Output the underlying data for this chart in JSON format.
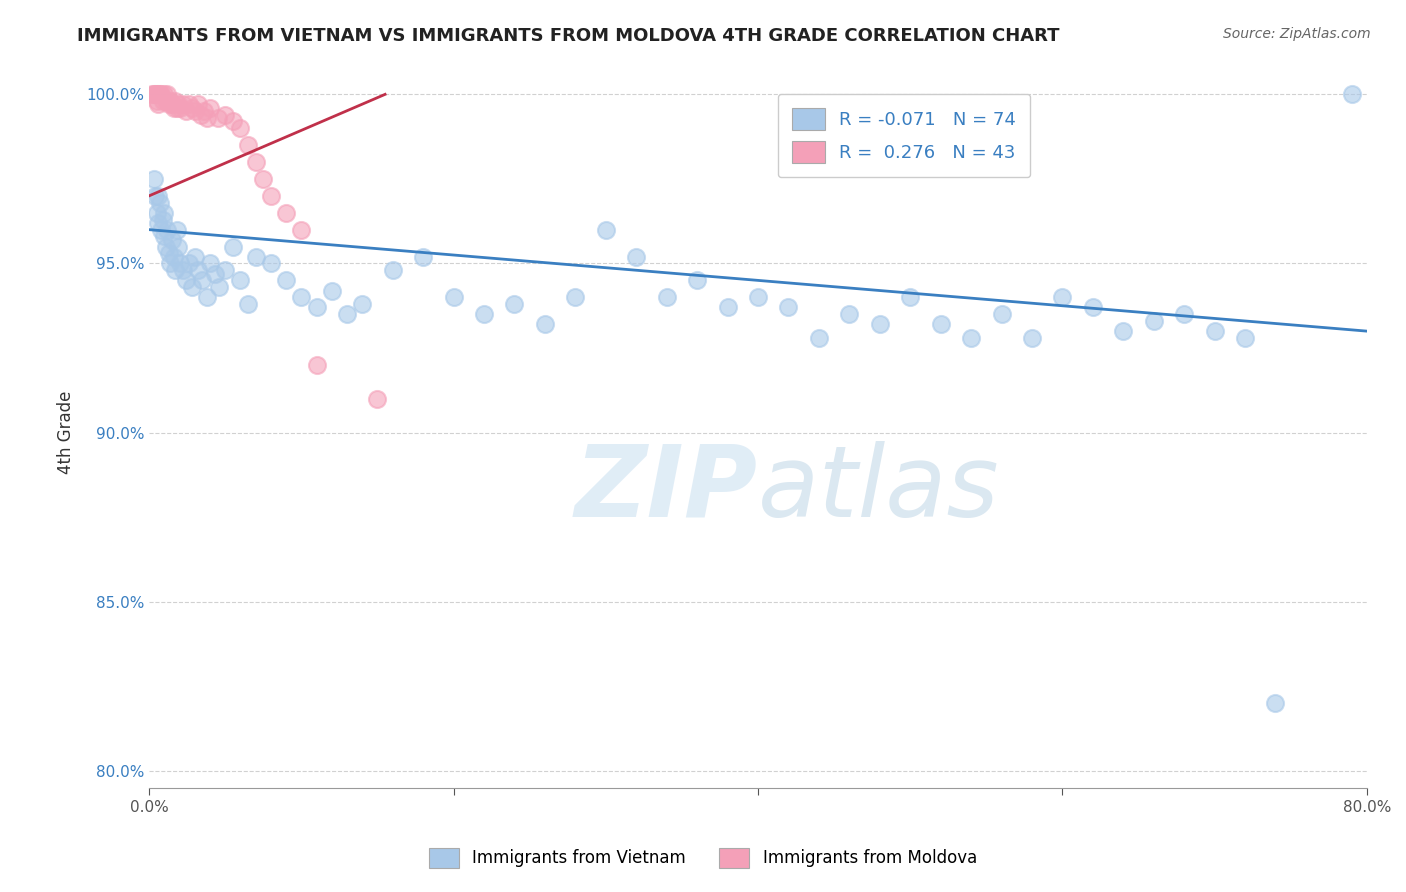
{
  "title": "IMMIGRANTS FROM VIETNAM VS IMMIGRANTS FROM MOLDOVA 4TH GRADE CORRELATION CHART",
  "source": "Source: ZipAtlas.com",
  "ylabel": "4th Grade",
  "xlim": [
    0.0,
    0.8
  ],
  "ylim": [
    0.795,
    1.005
  ],
  "xticks": [
    0.0,
    0.2,
    0.4,
    0.6,
    0.8
  ],
  "yticks": [
    0.8,
    0.85,
    0.9,
    0.95,
    1.0
  ],
  "r_vietnam": -0.071,
  "n_vietnam": 74,
  "r_moldova": 0.276,
  "n_moldova": 43,
  "color_vietnam": "#a8c8e8",
  "color_moldova": "#f4a0b8",
  "trendline_vietnam_color": "#3a7fc1",
  "trendline_moldova_color": "#c0304a",
  "background_color": "#ffffff",
  "grid_color": "#cccccc",
  "vietnam_x": [
    0.003,
    0.004,
    0.005,
    0.006,
    0.006,
    0.007,
    0.008,
    0.009,
    0.01,
    0.01,
    0.011,
    0.012,
    0.013,
    0.014,
    0.015,
    0.016,
    0.017,
    0.018,
    0.019,
    0.02,
    0.022,
    0.024,
    0.026,
    0.028,
    0.03,
    0.032,
    0.035,
    0.038,
    0.04,
    0.043,
    0.046,
    0.05,
    0.055,
    0.06,
    0.065,
    0.07,
    0.08,
    0.09,
    0.1,
    0.11,
    0.12,
    0.13,
    0.14,
    0.16,
    0.18,
    0.2,
    0.22,
    0.24,
    0.26,
    0.28,
    0.3,
    0.32,
    0.34,
    0.36,
    0.38,
    0.4,
    0.42,
    0.44,
    0.46,
    0.48,
    0.5,
    0.52,
    0.54,
    0.56,
    0.58,
    0.6,
    0.62,
    0.64,
    0.66,
    0.68,
    0.7,
    0.72,
    0.74,
    0.79
  ],
  "vietnam_y": [
    0.975,
    0.97,
    0.965,
    0.962,
    0.97,
    0.968,
    0.96,
    0.963,
    0.958,
    0.965,
    0.955,
    0.96,
    0.953,
    0.95,
    0.957,
    0.952,
    0.948,
    0.96,
    0.955,
    0.95,
    0.948,
    0.945,
    0.95,
    0.943,
    0.952,
    0.948,
    0.945,
    0.94,
    0.95,
    0.947,
    0.943,
    0.948,
    0.955,
    0.945,
    0.938,
    0.952,
    0.95,
    0.945,
    0.94,
    0.937,
    0.942,
    0.935,
    0.938,
    0.948,
    0.952,
    0.94,
    0.935,
    0.938,
    0.932,
    0.94,
    0.96,
    0.952,
    0.94,
    0.945,
    0.937,
    0.94,
    0.937,
    0.928,
    0.935,
    0.932,
    0.94,
    0.932,
    0.928,
    0.935,
    0.928,
    0.94,
    0.937,
    0.93,
    0.933,
    0.935,
    0.93,
    0.928,
    0.82,
    1.0
  ],
  "moldova_x": [
    0.002,
    0.003,
    0.004,
    0.005,
    0.005,
    0.006,
    0.006,
    0.007,
    0.008,
    0.009,
    0.01,
    0.011,
    0.012,
    0.013,
    0.014,
    0.015,
    0.016,
    0.017,
    0.018,
    0.019,
    0.02,
    0.022,
    0.024,
    0.026,
    0.028,
    0.03,
    0.032,
    0.034,
    0.036,
    0.038,
    0.04,
    0.045,
    0.05,
    0.055,
    0.06,
    0.065,
    0.07,
    0.075,
    0.08,
    0.09,
    0.1,
    0.11,
    0.15
  ],
  "moldova_y": [
    1.0,
    1.0,
    1.0,
    1.0,
    0.998,
    1.0,
    0.997,
    1.0,
    1.0,
    0.998,
    1.0,
    0.998,
    1.0,
    0.997,
    0.998,
    0.997,
    0.996,
    0.998,
    0.996,
    0.997,
    0.996,
    0.997,
    0.995,
    0.997,
    0.996,
    0.995,
    0.997,
    0.994,
    0.995,
    0.993,
    0.996,
    0.993,
    0.994,
    0.992,
    0.99,
    0.985,
    0.98,
    0.975,
    0.97,
    0.965,
    0.96,
    0.92,
    0.91
  ],
  "vietnam_trend_x": [
    0.0,
    0.8
  ],
  "vietnam_trend_y": [
    0.96,
    0.93
  ],
  "moldova_trend_x": [
    0.0,
    0.155
  ],
  "moldova_trend_y": [
    0.97,
    1.0
  ]
}
